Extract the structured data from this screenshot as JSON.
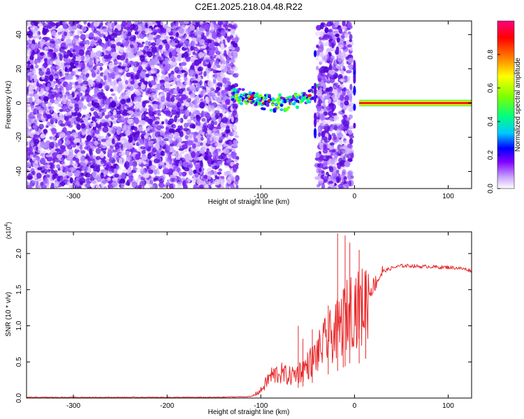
{
  "title": "C2E1.2025.218.04.48.R22",
  "chart_data": [
    {
      "type": "heatmap",
      "xlabel": "Height of straight line (km)",
      "ylabel": "Frequency (Hz)",
      "xlim": [
        -350,
        125
      ],
      "ylim": [
        -50,
        48
      ],
      "xticks": [
        -300,
        -200,
        -100,
        0,
        100
      ],
      "yticks": [
        -40,
        -20,
        0,
        20,
        40
      ],
      "colorbar": {
        "label": "Normalized spectral amplitude",
        "range": [
          0.0,
          1.0
        ],
        "ticks": [
          "0.0",
          "0.2",
          "0.4",
          "0.6",
          "0.8"
        ],
        "tick_values": [
          0.0,
          0.2,
          0.4,
          0.6,
          0.8
        ],
        "colormap": [
          "#ffffff",
          "#c8a0ff",
          "#8000ff",
          "#0000ff",
          "#00c8ff",
          "#00ff80",
          "#80ff00",
          "#ffff00",
          "#ff8000",
          "#ff0000",
          "#ff0080"
        ]
      },
      "regions": [
        {
          "name": "noise",
          "x": [
            -350,
            -125
          ],
          "freq": [
            -50,
            48
          ],
          "amplitude": 0.15
        },
        {
          "name": "signal-weak",
          "x": [
            -130,
            -40
          ],
          "center_freq": 3,
          "spread": 8,
          "amplitude": 0.45
        },
        {
          "name": "noise",
          "x": [
            -40,
            -3
          ],
          "freq": [
            -50,
            48
          ],
          "amplitude": 0.15
        },
        {
          "name": "signal-strong",
          "x": [
            5,
            125
          ],
          "center_freq": 0,
          "spread": 3,
          "amplitude": 1.0
        }
      ]
    },
    {
      "type": "line",
      "xlabel": "Height of straight line (km)",
      "ylabel": "SNR (10 * v/v)",
      "yscale_label": "(x10",
      "yscale_exp": "4",
      "yscale_close": ")",
      "xlim": [
        -350,
        125
      ],
      "ylim": [
        0,
        2.3
      ],
      "xticks": [
        -300,
        -200,
        -100,
        0,
        100
      ],
      "yticks": [
        "0.0",
        "0.5",
        "1.0",
        "1.5",
        "2.0"
      ],
      "ytick_values": [
        0.0,
        0.5,
        1.0,
        1.5,
        2.0
      ],
      "color": "#e8282a",
      "series": [
        {
          "x": [
            -350,
            -300,
            -250,
            -200,
            -150,
            -110,
            -100,
            -90,
            -80,
            -70,
            -60,
            -50,
            -40,
            -30,
            -20,
            -15,
            -10,
            -5,
            0,
            5,
            10,
            15,
            20,
            25,
            30,
            40,
            50,
            60,
            70,
            80,
            90,
            100,
            110,
            120,
            125
          ],
          "values": [
            0.01,
            0.01,
            0.01,
            0.01,
            0.01,
            0.02,
            0.1,
            0.3,
            0.35,
            0.3,
            0.35,
            0.45,
            0.6,
            0.8,
            0.9,
            1.0,
            1.1,
            1.2,
            1.3,
            1.2,
            1.3,
            1.45,
            1.55,
            1.65,
            1.75,
            1.8,
            1.83,
            1.83,
            1.82,
            1.82,
            1.81,
            1.81,
            1.8,
            1.78,
            1.76
          ]
        }
      ],
      "spikes": [
        {
          "x": -60,
          "y": 1.0
        },
        {
          "x": -55,
          "y": 0.82
        },
        {
          "x": -45,
          "y": 0.95
        },
        {
          "x": -28,
          "y": 1.28
        },
        {
          "x": -18,
          "y": 2.28
        },
        {
          "x": -12,
          "y": 1.5
        },
        {
          "x": -10,
          "y": 2.25
        },
        {
          "x": -5,
          "y": 2.15
        },
        {
          "x": 5,
          "y": 2.05
        },
        {
          "x": 12,
          "y": 1.7
        }
      ]
    }
  ]
}
